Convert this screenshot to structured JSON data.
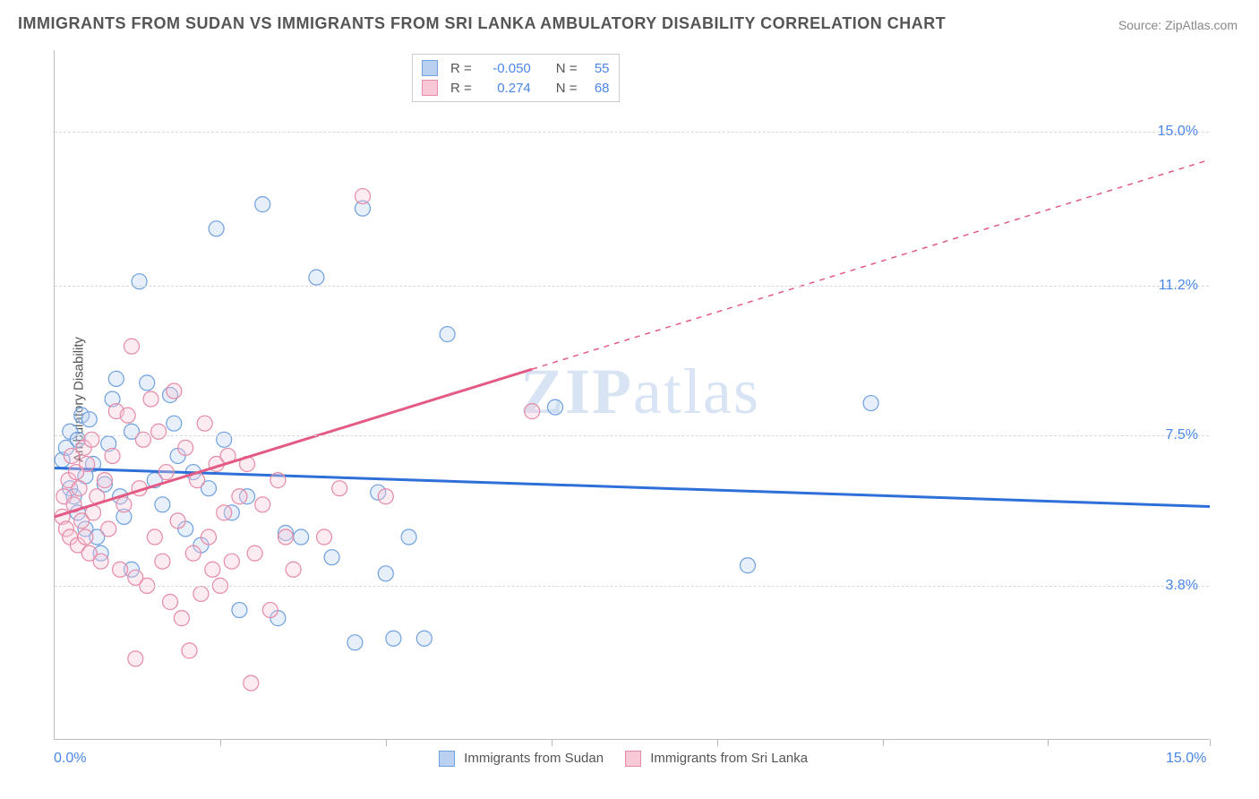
{
  "title": "IMMIGRANTS FROM SUDAN VS IMMIGRANTS FROM SRI LANKA AMBULATORY DISABILITY CORRELATION CHART",
  "source": "Source: ZipAtlas.com",
  "ylabel": "Ambulatory Disability",
  "watermark_bold": "ZIP",
  "watermark_rest": "atlas",
  "chart": {
    "type": "scatter",
    "xlim": [
      0,
      15
    ],
    "ylim": [
      0,
      17
    ],
    "yticks": [
      3.8,
      7.5,
      11.2,
      15.0
    ],
    "ytick_labels": [
      "3.8%",
      "7.5%",
      "11.2%",
      "15.0%"
    ],
    "xtick_positions": [
      2.15,
      4.3,
      6.45,
      8.6,
      10.75,
      12.9,
      15.0
    ],
    "x_origin_label": "0.0%",
    "x_max_label": "15.0%",
    "background_color": "#ffffff",
    "grid_color": "#d8d8d8",
    "series": [
      {
        "name": "Immigrants from Sudan",
        "color_fill": "#b9d0f0",
        "color_stroke": "#6fa0e0",
        "swatch_border": "#6fa0e0",
        "line_color": "#2e6fd9",
        "line_width": 3,
        "regression": {
          "x0": 0,
          "y0": 6.7,
          "x1": 15,
          "y1": 5.75,
          "solid_until_x": 15
        },
        "R": "-0.050",
        "N": "55",
        "points": [
          [
            0.1,
            6.9
          ],
          [
            0.15,
            7.2
          ],
          [
            0.2,
            6.2
          ],
          [
            0.2,
            7.6
          ],
          [
            0.25,
            6.0
          ],
          [
            0.3,
            5.6
          ],
          [
            0.3,
            7.4
          ],
          [
            0.35,
            8.0
          ],
          [
            0.4,
            6.5
          ],
          [
            0.4,
            5.2
          ],
          [
            0.45,
            7.9
          ],
          [
            0.5,
            6.8
          ],
          [
            0.55,
            5.0
          ],
          [
            0.6,
            4.6
          ],
          [
            0.7,
            7.3
          ],
          [
            0.75,
            8.4
          ],
          [
            0.8,
            8.9
          ],
          [
            0.85,
            6.0
          ],
          [
            0.9,
            5.5
          ],
          [
            1.0,
            7.6
          ],
          [
            1.0,
            4.2
          ],
          [
            1.1,
            11.3
          ],
          [
            1.2,
            8.8
          ],
          [
            1.3,
            6.4
          ],
          [
            1.4,
            5.8
          ],
          [
            1.5,
            8.5
          ],
          [
            1.6,
            7.0
          ],
          [
            1.7,
            5.2
          ],
          [
            1.8,
            6.6
          ],
          [
            1.9,
            4.8
          ],
          [
            2.0,
            6.2
          ],
          [
            2.1,
            12.6
          ],
          [
            2.2,
            7.4
          ],
          [
            2.3,
            5.6
          ],
          [
            2.4,
            3.2
          ],
          [
            2.5,
            6.0
          ],
          [
            2.7,
            13.2
          ],
          [
            2.9,
            3.0
          ],
          [
            3.0,
            5.1
          ],
          [
            3.2,
            5.0
          ],
          [
            3.4,
            11.4
          ],
          [
            3.6,
            4.5
          ],
          [
            3.9,
            2.4
          ],
          [
            4.0,
            13.1
          ],
          [
            4.2,
            6.1
          ],
          [
            4.3,
            4.1
          ],
          [
            4.4,
            2.5
          ],
          [
            4.6,
            5.0
          ],
          [
            4.8,
            2.5
          ],
          [
            5.1,
            10.0
          ],
          [
            6.5,
            8.2
          ],
          [
            9.0,
            4.3
          ],
          [
            10.6,
            8.3
          ],
          [
            1.55,
            7.8
          ],
          [
            0.65,
            6.3
          ]
        ]
      },
      {
        "name": "Immigrants from Sri Lanka",
        "color_fill": "#f7c9d6",
        "color_stroke": "#e68aa6",
        "swatch_border": "#e68aa6",
        "line_color": "#e35b84",
        "line_width": 3,
        "regression": {
          "x0": 0,
          "y0": 5.5,
          "x1": 15,
          "y1": 14.3,
          "solid_until_x": 6.2
        },
        "R": "0.274",
        "N": "68",
        "points": [
          [
            0.1,
            5.5
          ],
          [
            0.12,
            6.0
          ],
          [
            0.15,
            5.2
          ],
          [
            0.18,
            6.4
          ],
          [
            0.2,
            5.0
          ],
          [
            0.22,
            7.0
          ],
          [
            0.25,
            5.8
          ],
          [
            0.28,
            6.6
          ],
          [
            0.3,
            4.8
          ],
          [
            0.32,
            6.2
          ],
          [
            0.35,
            5.4
          ],
          [
            0.38,
            7.2
          ],
          [
            0.4,
            5.0
          ],
          [
            0.42,
            6.8
          ],
          [
            0.45,
            4.6
          ],
          [
            0.48,
            7.4
          ],
          [
            0.5,
            5.6
          ],
          [
            0.55,
            6.0
          ],
          [
            0.6,
            4.4
          ],
          [
            0.65,
            6.4
          ],
          [
            0.7,
            5.2
          ],
          [
            0.75,
            7.0
          ],
          [
            0.8,
            8.1
          ],
          [
            0.85,
            4.2
          ],
          [
            0.9,
            5.8
          ],
          [
            0.95,
            8.0
          ],
          [
            1.0,
            9.7
          ],
          [
            1.05,
            4.0
          ],
          [
            1.1,
            6.2
          ],
          [
            1.15,
            7.4
          ],
          [
            1.2,
            3.8
          ],
          [
            1.25,
            8.4
          ],
          [
            1.3,
            5.0
          ],
          [
            1.35,
            7.6
          ],
          [
            1.4,
            4.4
          ],
          [
            1.45,
            6.6
          ],
          [
            1.5,
            3.4
          ],
          [
            1.55,
            8.6
          ],
          [
            1.6,
            5.4
          ],
          [
            1.65,
            3.0
          ],
          [
            1.7,
            7.2
          ],
          [
            1.75,
            2.2
          ],
          [
            1.8,
            4.6
          ],
          [
            1.85,
            6.4
          ],
          [
            1.9,
            3.6
          ],
          [
            1.95,
            7.8
          ],
          [
            2.0,
            5.0
          ],
          [
            2.05,
            4.2
          ],
          [
            2.1,
            6.8
          ],
          [
            2.15,
            3.8
          ],
          [
            2.2,
            5.6
          ],
          [
            2.25,
            7.0
          ],
          [
            2.3,
            4.4
          ],
          [
            2.4,
            6.0
          ],
          [
            2.5,
            6.8
          ],
          [
            2.55,
            1.4
          ],
          [
            2.6,
            4.6
          ],
          [
            2.7,
            5.8
          ],
          [
            2.8,
            3.2
          ],
          [
            2.9,
            6.4
          ],
          [
            3.0,
            5.0
          ],
          [
            3.1,
            4.2
          ],
          [
            3.5,
            5.0
          ],
          [
            3.7,
            6.2
          ],
          [
            4.0,
            13.4
          ],
          [
            4.3,
            6.0
          ],
          [
            1.05,
            2.0
          ],
          [
            6.2,
            8.1
          ]
        ]
      }
    ],
    "bottom_legend_labels": [
      "Immigrants from Sudan",
      "Immigrants from Sri Lanka"
    ],
    "top_legend": {
      "r_label": "R =",
      "n_label": "N ="
    }
  }
}
